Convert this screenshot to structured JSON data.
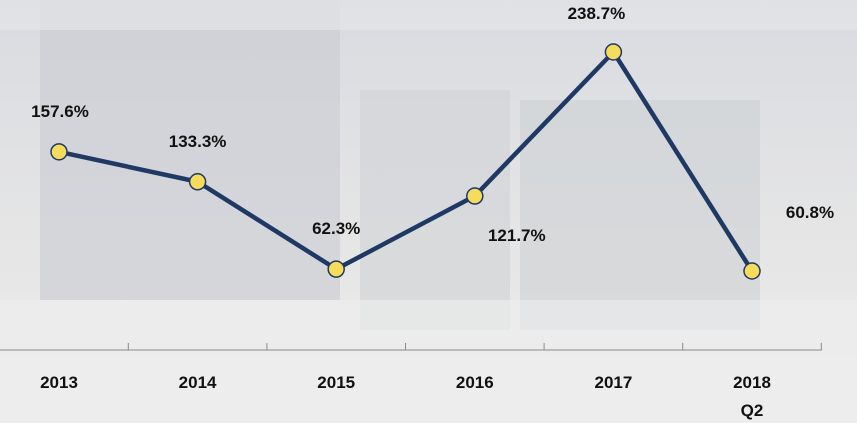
{
  "chart_data": {
    "type": "line",
    "categories": [
      "2013",
      "2014",
      "2015",
      "2016",
      "2017",
      "2018\nQ2"
    ],
    "values": [
      157.6,
      133.3,
      62.3,
      121.7,
      238.7,
      60.8
    ],
    "value_labels": [
      "157.6%",
      "133.3%",
      "62.3%",
      "121.7%",
      "238.7%",
      "60.8%"
    ],
    "color": "#1f3864",
    "marker_color": "#f7dc5c"
  }
}
